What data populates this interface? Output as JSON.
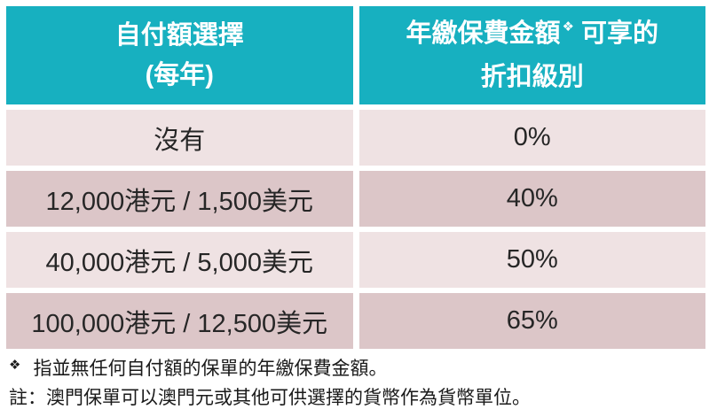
{
  "colors": {
    "header_bg": "#17B0C0",
    "row_light": "#EFE2E3",
    "row_dark": "#DCC6C8",
    "header_text": "#FFFFFF",
    "cell_text": "#262626"
  },
  "table": {
    "header_left": {
      "line1": "自付額選擇",
      "line2": "(每年)"
    },
    "header_right": {
      "line1_main": "年繳保費金額",
      "line1_sup": "❖",
      "line1_rest": "可享的",
      "line2": "折扣級別"
    },
    "rows": [
      {
        "option": "沒有",
        "discount": "0%"
      },
      {
        "option": "12,000港元 / 1,500美元",
        "discount": "40%"
      },
      {
        "option": "40,000港元 / 5,000美元",
        "discount": "50%"
      },
      {
        "option": "100,000港元 / 12,500美元",
        "discount": "65%"
      }
    ]
  },
  "footnotes": {
    "symbol": "❖",
    "note1": "指並無任何自付額的保單的年繳保費金額。",
    "note2": "註：澳門保單可以澳門元或其他可供選擇的貨幣作為貨幣單位。"
  }
}
